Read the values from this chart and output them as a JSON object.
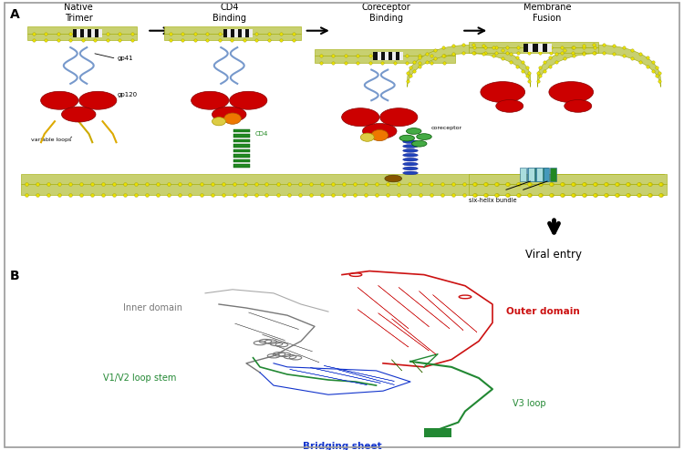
{
  "fig_width": 7.5,
  "fig_height": 4.94,
  "dpi": 100,
  "bg": "#ffffff",
  "panel_A": "A",
  "panel_B": "B",
  "steps": [
    "Native\nTrimer",
    "CD4\nBinding",
    "Coreceptor\nBinding",
    "Membrane\nFusion"
  ],
  "viral_entry": "Viral entry",
  "six_helix": "six-helix bundle",
  "coreceptor_lbl": "coreceptor",
  "cd4_lbl": "CD4",
  "gp41_lbl": "gp41",
  "gp120_lbl": "gp120",
  "var_loops_lbl": "variable loops",
  "outer_domain_lbl": "Outer domain",
  "inner_domain_lbl": "Inner domain",
  "v1v2_lbl": "V1/V2 loop stem",
  "v3_lbl": "V3 loop",
  "bridging_lbl": "Bridging sheet",
  "mem_fill": "#c8d070",
  "mem_edge": "#a0aa00",
  "bead_color": "#e8e000",
  "bead_edge": "#888800",
  "viral_red": "#cc0000",
  "gp41_blue": "#7799cc",
  "cd4_green": "#228822",
  "coreceptor_g": "#44aa44",
  "blue_helix": "#2244bb",
  "brown_cd4": "#885500",
  "orange_piece": "#ee7700",
  "cyan_helix": "#4499bb",
  "outer_red": "#cc1111",
  "inner_gray": "#777777",
  "v3_green": "#228833",
  "bridging_blue": "#1133cc",
  "black_checker": "#111111",
  "white_checker": "#eeeeee",
  "green_patch": "#336600"
}
